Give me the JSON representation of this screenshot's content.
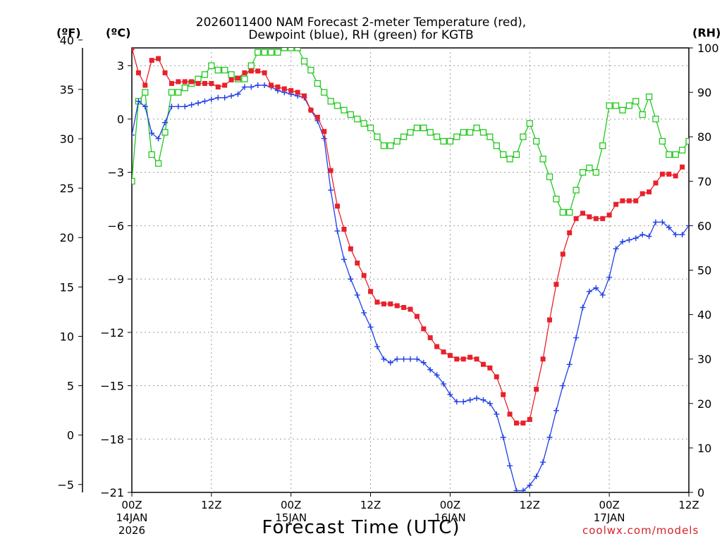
{
  "title_line1": "2026011400 NAM Forecast 2-meter Temperature (red),",
  "title_line2": "Dewpoint (blue), RH (green) for KGTB",
  "units": {
    "f": "(ºF)",
    "c": "(ºC)",
    "rh": "(RH)"
  },
  "xlabel": "Forecast Time (UTC)",
  "credit": "coolwx.com/models",
  "colors": {
    "temp": "#e8212b",
    "dewpoint": "#1f3fe6",
    "rh": "#22c81e",
    "grid": "#9a9a9a"
  },
  "chart_data": {
    "type": "line",
    "x_hours_range": [
      0,
      84
    ],
    "x_ticks": [
      {
        "hour": 0,
        "label": "00Z",
        "sub1": "14JAN",
        "sub2": "2026"
      },
      {
        "hour": 12,
        "label": "12Z",
        "sub1": "",
        "sub2": ""
      },
      {
        "hour": 24,
        "label": "00Z",
        "sub1": "15JAN",
        "sub2": ""
      },
      {
        "hour": 36,
        "label": "12Z",
        "sub1": "",
        "sub2": ""
      },
      {
        "hour": 48,
        "label": "00Z",
        "sub1": "16JAN",
        "sub2": ""
      },
      {
        "hour": 60,
        "label": "12Z",
        "sub1": "",
        "sub2": ""
      },
      {
        "hour": 72,
        "label": "00Z",
        "sub1": "17JAN",
        "sub2": ""
      },
      {
        "hour": 84,
        "label": "12Z",
        "sub1": "",
        "sub2": ""
      }
    ],
    "y_celsius_range": [
      -21,
      4
    ],
    "y_celsius_ticks": [
      3,
      0,
      -3,
      -6,
      -9,
      -12,
      -15,
      -18,
      -21
    ],
    "y_fahrenheit_ticks": [
      40,
      35,
      30,
      25,
      20,
      15,
      10,
      5,
      0,
      -5
    ],
    "y_rh_range": [
      0,
      100
    ],
    "y_rh_ticks": [
      100,
      90,
      80,
      70,
      60,
      50,
      40,
      30,
      20,
      10,
      0
    ],
    "series": [
      {
        "name": "Temperature",
        "unit": "C",
        "marker": "square-filled",
        "points": [
          [
            0,
            4
          ],
          [
            1,
            2.6
          ],
          [
            2,
            1.9
          ],
          [
            3,
            3.3
          ],
          [
            4,
            3.4
          ],
          [
            5,
            2.6
          ],
          [
            6,
            2
          ],
          [
            7,
            2.1
          ],
          [
            8,
            2.1
          ],
          [
            9,
            2.1
          ],
          [
            10,
            2
          ],
          [
            11,
            2
          ],
          [
            12,
            2
          ],
          [
            13,
            1.8
          ],
          [
            14,
            1.9
          ],
          [
            15,
            2.2
          ],
          [
            16,
            2.3
          ],
          [
            17,
            2.6
          ],
          [
            18,
            2.7
          ],
          [
            19,
            2.7
          ],
          [
            20,
            2.6
          ],
          [
            21,
            1.9
          ],
          [
            22,
            1.8
          ],
          [
            23,
            1.7
          ],
          [
            24,
            1.6
          ],
          [
            25,
            1.5
          ],
          [
            26,
            1.3
          ],
          [
            27,
            0.5
          ],
          [
            28,
            0.1
          ],
          [
            29,
            -0.7
          ],
          [
            30,
            -2.9
          ],
          [
            31,
            -4.9
          ],
          [
            32,
            -6.2
          ],
          [
            33,
            -7.3
          ],
          [
            34,
            -8.1
          ],
          [
            35,
            -8.8
          ],
          [
            36,
            -9.7
          ],
          [
            37,
            -10.3
          ],
          [
            38,
            -10.4
          ],
          [
            39,
            -10.4
          ],
          [
            40,
            -10.5
          ],
          [
            41,
            -10.6
          ],
          [
            42,
            -10.7
          ],
          [
            43,
            -11.1
          ],
          [
            44,
            -11.8
          ],
          [
            45,
            -12.3
          ],
          [
            46,
            -12.8
          ],
          [
            47,
            -13.1
          ],
          [
            48,
            -13.3
          ],
          [
            49,
            -13.5
          ],
          [
            50,
            -13.5
          ],
          [
            51,
            -13.4
          ],
          [
            52,
            -13.5
          ],
          [
            53,
            -13.8
          ],
          [
            54,
            -14
          ],
          [
            55,
            -14.5
          ],
          [
            56,
            -15.5
          ],
          [
            57,
            -16.6
          ],
          [
            58,
            -17.1
          ],
          [
            59,
            -17.1
          ],
          [
            60,
            -16.9
          ],
          [
            61,
            -15.2
          ],
          [
            62,
            -13.5
          ],
          [
            63,
            -11.3
          ],
          [
            64,
            -9.3
          ],
          [
            65,
            -7.6
          ],
          [
            66,
            -6.4
          ],
          [
            67,
            -5.6
          ],
          [
            68,
            -5.3
          ],
          [
            69,
            -5.5
          ],
          [
            70,
            -5.6
          ],
          [
            71,
            -5.6
          ],
          [
            72,
            -5.4
          ],
          [
            73,
            -4.8
          ],
          [
            74,
            -4.6
          ],
          [
            75,
            -4.6
          ],
          [
            76,
            -4.6
          ],
          [
            77,
            -4.2
          ],
          [
            78,
            -4.1
          ],
          [
            79,
            -3.6
          ],
          [
            80,
            -3.1
          ],
          [
            81,
            -3.1
          ],
          [
            82,
            -3.2
          ],
          [
            83,
            -2.7
          ]
        ]
      },
      {
        "name": "Dewpoint",
        "unit": "C",
        "marker": "plus",
        "points": [
          [
            0,
            -0.9
          ],
          [
            1,
            1
          ],
          [
            2,
            0.7
          ],
          [
            3,
            -0.8
          ],
          [
            4,
            -1.1
          ],
          [
            5,
            -0.2
          ],
          [
            6,
            0.7
          ],
          [
            7,
            0.7
          ],
          [
            8,
            0.7
          ],
          [
            9,
            0.8
          ],
          [
            10,
            0.9
          ],
          [
            11,
            1
          ],
          [
            12,
            1.1
          ],
          [
            13,
            1.2
          ],
          [
            14,
            1.2
          ],
          [
            15,
            1.3
          ],
          [
            16,
            1.4
          ],
          [
            17,
            1.8
          ],
          [
            18,
            1.8
          ],
          [
            19,
            1.9
          ],
          [
            20,
            1.9
          ],
          [
            21,
            1.8
          ],
          [
            22,
            1.6
          ],
          [
            23,
            1.5
          ],
          [
            24,
            1.4
          ],
          [
            25,
            1.3
          ],
          [
            26,
            1.2
          ],
          [
            27,
            0.5
          ],
          [
            28,
            -0.1
          ],
          [
            29,
            -1.1
          ],
          [
            30,
            -4
          ],
          [
            31,
            -6.3
          ],
          [
            32,
            -7.9
          ],
          [
            33,
            -9
          ],
          [
            34,
            -9.9
          ],
          [
            35,
            -10.9
          ],
          [
            36,
            -11.7
          ],
          [
            37,
            -12.8
          ],
          [
            38,
            -13.5
          ],
          [
            39,
            -13.7
          ],
          [
            40,
            -13.5
          ],
          [
            41,
            -13.5
          ],
          [
            42,
            -13.5
          ],
          [
            43,
            -13.5
          ],
          [
            44,
            -13.7
          ],
          [
            45,
            -14.1
          ],
          [
            46,
            -14.4
          ],
          [
            47,
            -14.9
          ],
          [
            48,
            -15.5
          ],
          [
            49,
            -15.9
          ],
          [
            50,
            -15.9
          ],
          [
            51,
            -15.8
          ],
          [
            52,
            -15.7
          ],
          [
            53,
            -15.8
          ],
          [
            54,
            -16
          ],
          [
            55,
            -16.6
          ],
          [
            56,
            -17.9
          ],
          [
            57,
            -19.5
          ],
          [
            58,
            -20.9
          ],
          [
            59,
            -20.9
          ],
          [
            60,
            -20.6
          ],
          [
            61,
            -20.1
          ],
          [
            62,
            -19.3
          ],
          [
            63,
            -17.9
          ],
          [
            64,
            -16.4
          ],
          [
            65,
            -15
          ],
          [
            66,
            -13.8
          ],
          [
            67,
            -12.3
          ],
          [
            68,
            -10.6
          ],
          [
            69,
            -9.7
          ],
          [
            70,
            -9.5
          ],
          [
            71,
            -9.9
          ],
          [
            72,
            -8.9
          ],
          [
            73,
            -7.3
          ],
          [
            74,
            -6.9
          ],
          [
            75,
            -6.8
          ],
          [
            76,
            -6.7
          ],
          [
            77,
            -6.5
          ],
          [
            78,
            -6.6
          ],
          [
            79,
            -5.8
          ],
          [
            80,
            -5.8
          ],
          [
            81,
            -6.1
          ],
          [
            82,
            -6.5
          ],
          [
            83,
            -6.5
          ],
          [
            84,
            -6
          ]
        ]
      },
      {
        "name": "RH",
        "unit": "%",
        "marker": "square-open",
        "points": [
          [
            0,
            70
          ],
          [
            1,
            88
          ],
          [
            2,
            90
          ],
          [
            3,
            76
          ],
          [
            4,
            74
          ],
          [
            5,
            81
          ],
          [
            6,
            90
          ],
          [
            7,
            90
          ],
          [
            8,
            91
          ],
          [
            9,
            92
          ],
          [
            10,
            93
          ],
          [
            11,
            94
          ],
          [
            12,
            96
          ],
          [
            13,
            95
          ],
          [
            14,
            95
          ],
          [
            15,
            94
          ],
          [
            16,
            93
          ],
          [
            17,
            93
          ],
          [
            18,
            96
          ],
          [
            19,
            99
          ],
          [
            20,
            99
          ],
          [
            21,
            99
          ],
          [
            22,
            99
          ],
          [
            23,
            100
          ],
          [
            24,
            100
          ],
          [
            25,
            100
          ],
          [
            26,
            97
          ],
          [
            27,
            95
          ],
          [
            28,
            92
          ],
          [
            29,
            90
          ],
          [
            30,
            88
          ],
          [
            31,
            87
          ],
          [
            32,
            86
          ],
          [
            33,
            85
          ],
          [
            34,
            84
          ],
          [
            35,
            83
          ],
          [
            36,
            82
          ],
          [
            37,
            80
          ],
          [
            38,
            78
          ],
          [
            39,
            78
          ],
          [
            40,
            79
          ],
          [
            41,
            80
          ],
          [
            42,
            81
          ],
          [
            43,
            82
          ],
          [
            44,
            82
          ],
          [
            45,
            81
          ],
          [
            46,
            80
          ],
          [
            47,
            79
          ],
          [
            48,
            79
          ],
          [
            49,
            80
          ],
          [
            50,
            81
          ],
          [
            51,
            81
          ],
          [
            52,
            82
          ],
          [
            53,
            81
          ],
          [
            54,
            80
          ],
          [
            55,
            78
          ],
          [
            56,
            76
          ],
          [
            57,
            75
          ],
          [
            58,
            76
          ],
          [
            59,
            80
          ],
          [
            60,
            83
          ],
          [
            61,
            79
          ],
          [
            62,
            75
          ],
          [
            63,
            71
          ],
          [
            64,
            66
          ],
          [
            65,
            63
          ],
          [
            66,
            63
          ],
          [
            67,
            68
          ],
          [
            68,
            72
          ],
          [
            69,
            73
          ],
          [
            70,
            72
          ],
          [
            71,
            78
          ],
          [
            72,
            87
          ],
          [
            73,
            87
          ],
          [
            74,
            86
          ],
          [
            75,
            87
          ],
          [
            76,
            88
          ],
          [
            77,
            85
          ],
          [
            78,
            89
          ],
          [
            79,
            84
          ],
          [
            80,
            79
          ],
          [
            81,
            76
          ],
          [
            82,
            76
          ],
          [
            83,
            77
          ],
          [
            84,
            79
          ]
        ]
      }
    ]
  }
}
